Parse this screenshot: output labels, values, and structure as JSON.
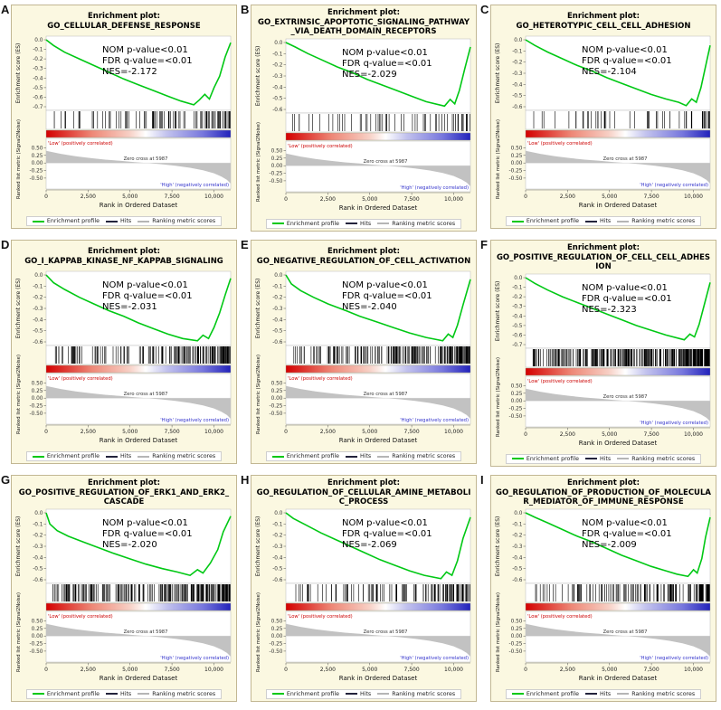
{
  "shared": {
    "xlabel": "Rank in Ordered Dataset",
    "x_ticks": [
      "0",
      "2,500",
      "5,000",
      "7,500",
      "10,000"
    ],
    "x_tick_values": [
      0,
      2500,
      5000,
      7500,
      10000
    ],
    "xlim": [
      0,
      11000
    ],
    "ylabel_es": "Enrichment score (ES)",
    "ylabel_metric": "Ranked list metric (Signal2Noise)",
    "metric_ticks": [
      "0.50",
      "0.25",
      "0.00",
      "-0.25",
      "-0.50"
    ],
    "metric_tick_values": [
      0.5,
      0.25,
      0,
      -0.25,
      -0.5
    ],
    "zero_cross_label": "Zero cross at 5987",
    "zero_cross_rank": 5987,
    "low_label": "'Low' (positively correlated)",
    "high_label": "'High' (negatively correlated)",
    "legend": [
      "Enrichment profile",
      "Hits",
      "Ranking metric scores"
    ],
    "ranked_metric_points": [
      [
        0,
        0.4
      ],
      [
        0.08,
        0.3
      ],
      [
        0.16,
        0.22
      ],
      [
        0.24,
        0.16
      ],
      [
        0.32,
        0.11
      ],
      [
        0.4,
        0.07
      ],
      [
        0.48,
        0.03
      ],
      [
        0.544,
        0
      ],
      [
        0.62,
        -0.04
      ],
      [
        0.7,
        -0.09
      ],
      [
        0.78,
        -0.16
      ],
      [
        0.85,
        -0.24
      ],
      [
        0.91,
        -0.34
      ],
      [
        0.95,
        -0.45
      ],
      [
        0.98,
        -0.56
      ],
      [
        1,
        -0.68
      ]
    ],
    "colors": {
      "profile": "#00c814",
      "hits": "#000000",
      "metric_fill": "#c2c2c2",
      "low_text": "#cc0000",
      "high_text": "#3333cc",
      "panel_bg": "#fbf8e1",
      "panel_border": "#c2b793",
      "gradient": [
        "#d40000",
        "#ee8877",
        "#f7cfc4",
        "#ffffff",
        "#c4c4ee",
        "#7777dd",
        "#2222bb"
      ]
    }
  },
  "chart_data": [
    {
      "type": "line",
      "subtype": "gsea_enrichment",
      "panel": "A",
      "title": "Enrichment plot:",
      "gene_set": "GO_CELLULAR_DEFENSE_RESPONSE",
      "nom_p_label": "NOM p-value<0.01",
      "fdr_q_label": "FDR q-value=<0.01",
      "nes_label": "NES=-2.172",
      "nom_p": "<0.01",
      "fdr_q": "<0.01",
      "nes": -2.172,
      "es_axis_min": -0.7,
      "es_ticks": [
        "0.0",
        "-0.1",
        "-0.2",
        "-0.3",
        "-0.4",
        "-0.5",
        "-0.6",
        "-0.7"
      ],
      "es_points": [
        [
          0,
          0
        ],
        [
          0.04,
          -0.06
        ],
        [
          0.1,
          -0.13
        ],
        [
          0.18,
          -0.2
        ],
        [
          0.26,
          -0.27
        ],
        [
          0.34,
          -0.34
        ],
        [
          0.42,
          -0.41
        ],
        [
          0.5,
          -0.47
        ],
        [
          0.58,
          -0.53
        ],
        [
          0.66,
          -0.59
        ],
        [
          0.73,
          -0.64
        ],
        [
          0.8,
          -0.68
        ],
        [
          0.83,
          -0.63
        ],
        [
          0.86,
          -0.57
        ],
        [
          0.885,
          -0.62
        ],
        [
          0.91,
          -0.5
        ],
        [
          0.94,
          -0.38
        ],
        [
          0.97,
          -0.18
        ],
        [
          1,
          -0.03
        ]
      ],
      "hits_count": 100
    },
    {
      "type": "line",
      "subtype": "gsea_enrichment",
      "panel": "B",
      "title": "Enrichment plot:",
      "gene_set": "GO_EXTRINSIC_APOPTOTIC_SIGNALING_PATHWAY_VIA_DEATH_DOMAIN_RECEPTORS",
      "nom_p_label": "NOM p-value<0.01",
      "fdr_q_label": "FDR q-value=<0.01",
      "nes_label": "NES=-2.029",
      "nom_p": "<0.01",
      "fdr_q": "<0.01",
      "nes": -2.029,
      "es_axis_min": -0.6,
      "es_ticks": [
        "0.0",
        "-0.1",
        "-0.2",
        "-0.3",
        "-0.4",
        "-0.5",
        "-0.6"
      ],
      "es_points": [
        [
          0,
          0
        ],
        [
          0.05,
          -0.04
        ],
        [
          0.12,
          -0.1
        ],
        [
          0.2,
          -0.16
        ],
        [
          0.28,
          -0.22
        ],
        [
          0.36,
          -0.27
        ],
        [
          0.44,
          -0.33
        ],
        [
          0.52,
          -0.38
        ],
        [
          0.6,
          -0.43
        ],
        [
          0.68,
          -0.48
        ],
        [
          0.76,
          -0.53
        ],
        [
          0.86,
          -0.57
        ],
        [
          0.89,
          -0.51
        ],
        [
          0.915,
          -0.55
        ],
        [
          0.94,
          -0.43
        ],
        [
          0.97,
          -0.23
        ],
        [
          1,
          -0.04
        ]
      ],
      "hits_count": 65
    },
    {
      "type": "line",
      "subtype": "gsea_enrichment",
      "panel": "C",
      "title": "Enrichment plot:",
      "gene_set": "GO_HETEROTYPIC_CELL_CELL_ADHESION",
      "nom_p_label": "NOM p-value<0.01",
      "fdr_q_label": "FDR q-value=<0.01",
      "nes_label": "NES=-2.104",
      "nom_p": "<0.01",
      "fdr_q": "<0.01",
      "nes": -2.104,
      "es_axis_min": -0.6,
      "es_ticks": [
        "0.0",
        "-0.1",
        "-0.2",
        "-0.3",
        "-0.4",
        "-0.5",
        "-0.6"
      ],
      "es_points": [
        [
          0,
          0
        ],
        [
          0.05,
          -0.05
        ],
        [
          0.12,
          -0.11
        ],
        [
          0.2,
          -0.17
        ],
        [
          0.28,
          -0.23
        ],
        [
          0.36,
          -0.28
        ],
        [
          0.44,
          -0.34
        ],
        [
          0.52,
          -0.39
        ],
        [
          0.6,
          -0.44
        ],
        [
          0.68,
          -0.49
        ],
        [
          0.76,
          -0.53
        ],
        [
          0.83,
          -0.56
        ],
        [
          0.87,
          -0.59
        ],
        [
          0.9,
          -0.53
        ],
        [
          0.925,
          -0.56
        ],
        [
          0.95,
          -0.43
        ],
        [
          0.975,
          -0.24
        ],
        [
          1,
          -0.05
        ]
      ],
      "hits_count": 60
    },
    {
      "type": "line",
      "subtype": "gsea_enrichment",
      "panel": "D",
      "title": "Enrichment plot:",
      "gene_set": "GO_I_KAPPAB_KINASE_NF_KAPPAB_SIGNALING",
      "nom_p_label": "NOM p-value<0.01",
      "fdr_q_label": "FDR q-value=<0.01",
      "nes_label": "NES=-2.031",
      "nom_p": "<0.01",
      "fdr_q": "<0.01",
      "nes": -2.031,
      "es_axis_min": -0.6,
      "es_ticks": [
        "0.0",
        "-0.1",
        "-0.2",
        "-0.3",
        "-0.4",
        "-0.5",
        "-0.6"
      ],
      "es_points": [
        [
          0,
          0
        ],
        [
          0.04,
          -0.07
        ],
        [
          0.1,
          -0.13
        ],
        [
          0.18,
          -0.2
        ],
        [
          0.26,
          -0.26
        ],
        [
          0.34,
          -0.32
        ],
        [
          0.42,
          -0.37
        ],
        [
          0.5,
          -0.43
        ],
        [
          0.58,
          -0.48
        ],
        [
          0.66,
          -0.53
        ],
        [
          0.74,
          -0.57
        ],
        [
          0.82,
          -0.59
        ],
        [
          0.85,
          -0.54
        ],
        [
          0.88,
          -0.57
        ],
        [
          0.91,
          -0.47
        ],
        [
          0.94,
          -0.34
        ],
        [
          0.97,
          -0.18
        ],
        [
          1,
          -0.03
        ]
      ],
      "hits_count": 170
    },
    {
      "type": "line",
      "subtype": "gsea_enrichment",
      "panel": "E",
      "title": "Enrichment plot:",
      "gene_set": "GO_NEGATIVE_REGULATION_OF_CELL_ACTIVATION",
      "nom_p_label": "NOM p-value<0.01",
      "fdr_q_label": "FDR q-value=<0.01",
      "nes_label": "NES=-2.040",
      "nom_p": "<0.01",
      "fdr_q": "<0.01",
      "nes": -2.04,
      "es_axis_min": -0.6,
      "es_ticks": [
        "0.0",
        "-0.1",
        "-0.2",
        "-0.3",
        "-0.4",
        "-0.5",
        "-0.6"
      ],
      "es_points": [
        [
          0,
          0
        ],
        [
          0.03,
          -0.08
        ],
        [
          0.08,
          -0.14
        ],
        [
          0.15,
          -0.2
        ],
        [
          0.23,
          -0.26
        ],
        [
          0.31,
          -0.31
        ],
        [
          0.4,
          -0.37
        ],
        [
          0.49,
          -0.42
        ],
        [
          0.58,
          -0.47
        ],
        [
          0.67,
          -0.52
        ],
        [
          0.76,
          -0.56
        ],
        [
          0.85,
          -0.59
        ],
        [
          0.88,
          -0.53
        ],
        [
          0.905,
          -0.56
        ],
        [
          0.93,
          -0.45
        ],
        [
          0.96,
          -0.27
        ],
        [
          1,
          -0.04
        ]
      ],
      "hits_count": 200
    },
    {
      "type": "line",
      "subtype": "gsea_enrichment",
      "panel": "F",
      "title": "Enrichment plot:",
      "gene_set": "GO_POSITIVE_REGULATION_OF_CELL_CELL_ADHESION",
      "nom_p_label": "NOM p-value<0.01",
      "fdr_q_label": "FDR q-value=<0.01",
      "nes_label": "NES=-2.323",
      "nom_p": "<0.01",
      "fdr_q": "<0.01",
      "nes": -2.323,
      "es_axis_min": -0.7,
      "es_ticks": [
        "0.0",
        "-0.1",
        "-0.2",
        "-0.3",
        "-0.4",
        "-0.5",
        "-0.6",
        "-0.7"
      ],
      "es_points": [
        [
          0,
          0
        ],
        [
          0.05,
          -0.06
        ],
        [
          0.12,
          -0.13
        ],
        [
          0.2,
          -0.2
        ],
        [
          0.28,
          -0.26
        ],
        [
          0.36,
          -0.32
        ],
        [
          0.44,
          -0.38
        ],
        [
          0.52,
          -0.44
        ],
        [
          0.6,
          -0.5
        ],
        [
          0.68,
          -0.55
        ],
        [
          0.76,
          -0.6
        ],
        [
          0.86,
          -0.65
        ],
        [
          0.89,
          -0.59
        ],
        [
          0.915,
          -0.62
        ],
        [
          0.94,
          -0.49
        ],
        [
          0.97,
          -0.27
        ],
        [
          1,
          -0.05
        ]
      ],
      "hits_count": 320
    },
    {
      "type": "line",
      "subtype": "gsea_enrichment",
      "panel": "G",
      "title": "Enrichment plot:",
      "gene_set": "GO_POSITIVE_REGULATION_OF_ERK1_AND_ERK2_CASCADE",
      "nom_p_label": "NOM p-value<0.01",
      "fdr_q_label": "FDR q-value=<0.01",
      "nes_label": "NES=-2.020",
      "nom_p": "<0.01",
      "fdr_q": "<0.01",
      "nes": -2.02,
      "es_axis_min": -0.6,
      "es_ticks": [
        "0.0",
        "-0.1",
        "-0.2",
        "-0.3",
        "-0.4",
        "-0.5",
        "-0.6"
      ],
      "es_points": [
        [
          0,
          0
        ],
        [
          0.02,
          -0.1
        ],
        [
          0.06,
          -0.16
        ],
        [
          0.12,
          -0.21
        ],
        [
          0.2,
          -0.26
        ],
        [
          0.28,
          -0.31
        ],
        [
          0.36,
          -0.36
        ],
        [
          0.45,
          -0.41
        ],
        [
          0.54,
          -0.46
        ],
        [
          0.63,
          -0.5
        ],
        [
          0.71,
          -0.53
        ],
        [
          0.78,
          -0.56
        ],
        [
          0.82,
          -0.51
        ],
        [
          0.85,
          -0.54
        ],
        [
          0.89,
          -0.45
        ],
        [
          0.93,
          -0.33
        ],
        [
          0.96,
          -0.17
        ],
        [
          1,
          -0.03
        ]
      ],
      "hits_count": 230
    },
    {
      "type": "line",
      "subtype": "gsea_enrichment",
      "panel": "H",
      "title": "Enrichment plot:",
      "gene_set": "GO_REGULATION_OF_CELLULAR_AMINE_METABOLIC_PROCESS",
      "nom_p_label": "NOM p-value<0.01",
      "fdr_q_label": "FDR q-value=<0.01",
      "nes_label": "NES=-2.069",
      "nom_p": "<0.01",
      "fdr_q": "<0.01",
      "nes": -2.069,
      "es_axis_min": -0.6,
      "es_ticks": [
        "0.0",
        "-0.1",
        "-0.2",
        "-0.3",
        "-0.4",
        "-0.5",
        "-0.6"
      ],
      "es_points": [
        [
          0,
          0
        ],
        [
          0.04,
          -0.05
        ],
        [
          0.11,
          -0.11
        ],
        [
          0.19,
          -0.18
        ],
        [
          0.27,
          -0.24
        ],
        [
          0.35,
          -0.3
        ],
        [
          0.43,
          -0.36
        ],
        [
          0.51,
          -0.42
        ],
        [
          0.59,
          -0.47
        ],
        [
          0.67,
          -0.52
        ],
        [
          0.75,
          -0.56
        ],
        [
          0.84,
          -0.59
        ],
        [
          0.87,
          -0.53
        ],
        [
          0.9,
          -0.56
        ],
        [
          0.93,
          -0.43
        ],
        [
          0.96,
          -0.23
        ],
        [
          1,
          -0.04
        ]
      ],
      "hits_count": 120
    },
    {
      "type": "line",
      "subtype": "gsea_enrichment",
      "panel": "I",
      "title": "Enrichment plot:",
      "gene_set": "GO_REGULATION_OF_PRODUCTION_OF_MOLECULAR_MEDIATOR_OF_IMMUNE_RESPONSE",
      "nom_p_label": "NOM p-value<0.01",
      "fdr_q_label": "FDR q-value=<0.01",
      "nes_label": "NES=-2.009",
      "nom_p": "<0.01",
      "fdr_q": "<0.01",
      "nes": -2.009,
      "es_axis_min": -0.6,
      "es_ticks": [
        "0.0",
        "-0.1",
        "-0.2",
        "-0.3",
        "-0.4",
        "-0.5",
        "-0.6"
      ],
      "es_points": [
        [
          0,
          0
        ],
        [
          0.05,
          -0.04
        ],
        [
          0.12,
          -0.09
        ],
        [
          0.2,
          -0.15
        ],
        [
          0.28,
          -0.21
        ],
        [
          0.36,
          -0.26
        ],
        [
          0.44,
          -0.32
        ],
        [
          0.52,
          -0.38
        ],
        [
          0.6,
          -0.43
        ],
        [
          0.68,
          -0.48
        ],
        [
          0.76,
          -0.52
        ],
        [
          0.82,
          -0.55
        ],
        [
          0.88,
          -0.57
        ],
        [
          0.91,
          -0.51
        ],
        [
          0.93,
          -0.54
        ],
        [
          0.955,
          -0.41
        ],
        [
          0.975,
          -0.22
        ],
        [
          1,
          -0.04
        ]
      ],
      "hits_count": 150
    }
  ]
}
